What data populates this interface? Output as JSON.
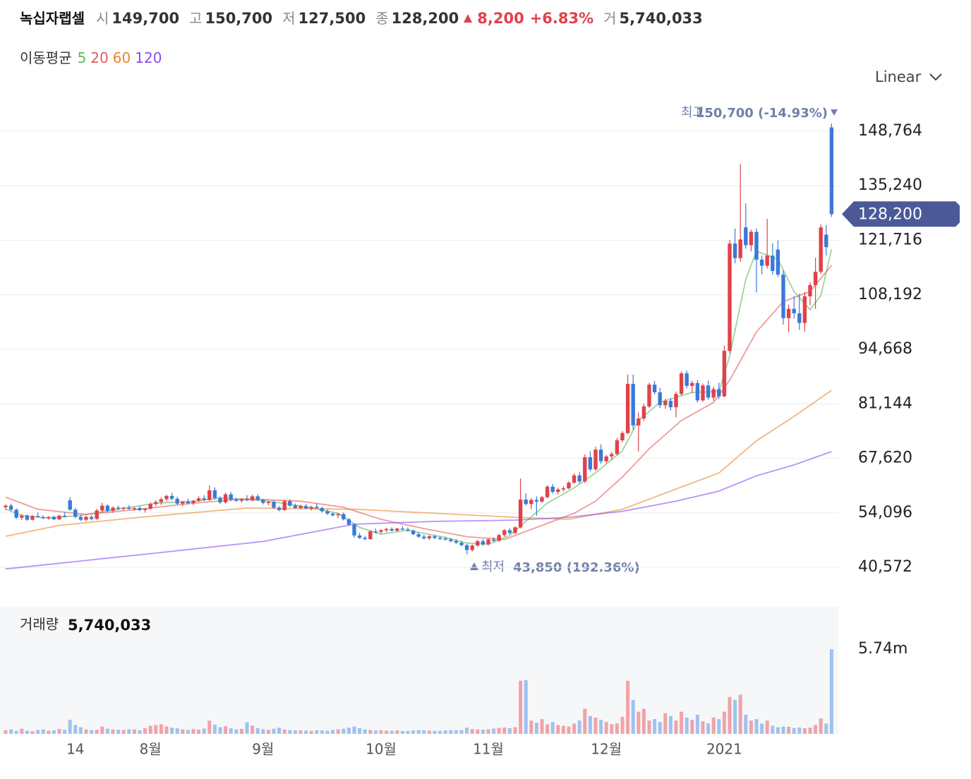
{
  "chart_data": {
    "type": "candlestick",
    "title": "녹십자랩셀",
    "header": {
      "open_label": "시",
      "open": "149,700",
      "high_label": "고",
      "high": "150,700",
      "low_label": "저",
      "low": "127,500",
      "close_label": "종",
      "close": "128,200",
      "change": "8,200",
      "change_pct": "+6.83%",
      "volume_label": "거",
      "volume": "5,740,033"
    },
    "ma_title": "이동평균",
    "scale_mode": "Linear",
    "high_annotation": {
      "label": "최고",
      "text": "150,700 (-14.93%)"
    },
    "low_annotation": {
      "label": "최저",
      "text": "43,850 (192.36%)"
    },
    "last_price": "128,200",
    "volume_title": "거래량",
    "volume_value": "5,740,033",
    "up_color": "#e0424a",
    "down_color": "#3a7ad8",
    "volume_up_color": "#f0a3a8",
    "volume_down_color": "#9fc2ef",
    "ylim": [
      34300,
      156800
    ],
    "yticks": [
      {
        "value": 40572,
        "label": "40,572"
      },
      {
        "value": 54096,
        "label": "54,096"
      },
      {
        "value": 67620,
        "label": "67,620"
      },
      {
        "value": 81144,
        "label": "81,144"
      },
      {
        "value": 94668,
        "label": "94,668"
      },
      {
        "value": 108192,
        "label": "108,192"
      },
      {
        "value": 121716,
        "label": "121,716"
      },
      {
        "value": 135240,
        "label": "135,240"
      },
      {
        "value": 148764,
        "label": "148,764"
      }
    ],
    "grid": true,
    "y2lim": [
      0,
      8610000
    ],
    "y2ticks": [
      {
        "value": 5740033,
        "label": "5.74m"
      }
    ],
    "xticks": [
      {
        "value": 13,
        "label": "14"
      },
      {
        "value": 27,
        "label": "8월"
      },
      {
        "value": 48,
        "label": "9월"
      },
      {
        "value": 70,
        "label": "10월"
      },
      {
        "value": 90,
        "label": "11월"
      },
      {
        "value": 112,
        "label": "12월"
      },
      {
        "value": 134,
        "label": "2021"
      }
    ],
    "ohlc": [
      [
        55500,
        56200,
        54800,
        55900
      ],
      [
        55900,
        56400,
        54600,
        54900
      ],
      [
        54900,
        55200,
        52600,
        52900
      ],
      [
        52900,
        53800,
        52300,
        53400
      ],
      [
        53400,
        53700,
        52100,
        52400
      ],
      [
        52400,
        53600,
        52200,
        53300
      ],
      [
        53300,
        54200,
        52900,
        53000
      ],
      [
        53000,
        53500,
        52600,
        52800
      ],
      [
        52800,
        53300,
        52400,
        53100
      ],
      [
        53100,
        53400,
        52300,
        52500
      ],
      [
        52500,
        53600,
        52300,
        53400
      ],
      [
        53400,
        54300,
        53000,
        53200
      ],
      [
        57200,
        58000,
        54600,
        54900
      ],
      [
        54900,
        55300,
        52800,
        53100
      ],
      [
        53100,
        53600,
        52100,
        52400
      ],
      [
        52400,
        53400,
        52000,
        53100
      ],
      [
        53100,
        53500,
        52200,
        52600
      ],
      [
        52600,
        55100,
        52400,
        54700
      ],
      [
        54700,
        56600,
        54200,
        55900
      ],
      [
        55900,
        56200,
        54300,
        54600
      ],
      [
        54600,
        55700,
        54100,
        55400
      ],
      [
        55400,
        55900,
        54800,
        55200
      ],
      [
        55200,
        55600,
        54700,
        55400
      ],
      [
        55400,
        56000,
        54900,
        55100
      ],
      [
        55100,
        55500,
        54600,
        55300
      ],
      [
        55300,
        55800,
        54500,
        54800
      ],
      [
        54800,
        55300,
        54200,
        55100
      ],
      [
        55100,
        56700,
        54900,
        56300
      ],
      [
        56300,
        57200,
        55800,
        56800
      ],
      [
        56800,
        57900,
        56100,
        57500
      ],
      [
        57500,
        58600,
        57000,
        58300
      ],
      [
        58300,
        59100,
        57200,
        57600
      ],
      [
        57600,
        58100,
        56100,
        56400
      ],
      [
        56400,
        57100,
        55800,
        56900
      ],
      [
        56900,
        57600,
        56200,
        56500
      ],
      [
        56500,
        57300,
        56000,
        57100
      ],
      [
        57100,
        58200,
        56800,
        57700
      ],
      [
        57700,
        58500,
        57000,
        57300
      ],
      [
        57300,
        60900,
        57100,
        59700
      ],
      [
        59700,
        60400,
        57400,
        57800
      ],
      [
        57800,
        58200,
        56300,
        56700
      ],
      [
        56700,
        59100,
        56400,
        58700
      ],
      [
        58700,
        59300,
        57000,
        57400
      ],
      [
        57400,
        57900,
        56800,
        57100
      ],
      [
        57100,
        57800,
        56600,
        57500
      ],
      [
        57500,
        58500,
        57000,
        57200
      ],
      [
        57200,
        58600,
        56900,
        58200
      ],
      [
        58200,
        58700,
        57000,
        57300
      ],
      [
        57300,
        57600,
        56200,
        56600
      ],
      [
        56600,
        57100,
        56000,
        56800
      ],
      [
        56800,
        57300,
        55100,
        55400
      ],
      [
        55400,
        55800,
        54500,
        54800
      ],
      [
        54800,
        57300,
        54600,
        57000
      ],
      [
        57000,
        57500,
        55600,
        55900
      ],
      [
        55900,
        56400,
        55100,
        55300
      ],
      [
        55300,
        56100,
        55000,
        55800
      ],
      [
        55800,
        56300,
        55000,
        55200
      ],
      [
        55200,
        55900,
        54700,
        55600
      ],
      [
        55600,
        56400,
        55100,
        55300
      ],
      [
        55300,
        55700,
        54200,
        54500
      ],
      [
        54500,
        55000,
        53600,
        53900
      ],
      [
        53900,
        54300,
        53200,
        53500
      ],
      [
        53500,
        54100,
        52800,
        53800
      ],
      [
        53800,
        54200,
        52200,
        52500
      ],
      [
        52500,
        52800,
        50900,
        51200
      ],
      [
        51200,
        51500,
        47900,
        48500
      ],
      [
        48500,
        49100,
        47600,
        47900
      ],
      [
        47900,
        48400,
        47300,
        47600
      ],
      [
        47600,
        49800,
        47400,
        49500
      ],
      [
        49500,
        50200,
        49000,
        49400
      ],
      [
        49400,
        50100,
        48900,
        49800
      ],
      [
        49800,
        50400,
        49300,
        50100
      ],
      [
        50100,
        50500,
        49500,
        49700
      ],
      [
        49700,
        50400,
        49400,
        50200
      ],
      [
        50200,
        50800,
        49800,
        50000
      ],
      [
        50000,
        50500,
        49400,
        49700
      ],
      [
        49700,
        50000,
        48600,
        48800
      ],
      [
        48800,
        49300,
        47900,
        48200
      ],
      [
        48200,
        48700,
        47500,
        47800
      ],
      [
        47800,
        48600,
        47400,
        48300
      ],
      [
        48300,
        48700,
        47600,
        47900
      ],
      [
        47900,
        48300,
        47400,
        47700
      ],
      [
        47700,
        48200,
        47300,
        47500
      ],
      [
        47500,
        47900,
        46800,
        47100
      ],
      [
        47100,
        47600,
        46400,
        46700
      ],
      [
        46700,
        47200,
        45800,
        46100
      ],
      [
        46100,
        46400,
        43850,
        44900
      ],
      [
        44900,
        46300,
        44500,
        46000
      ],
      [
        46000,
        47400,
        45700,
        47100
      ],
      [
        47100,
        47600,
        45900,
        46300
      ],
      [
        46300,
        47800,
        46000,
        47500
      ],
      [
        47500,
        48100,
        46800,
        47200
      ],
      [
        47200,
        48900,
        46900,
        48600
      ],
      [
        48600,
        50100,
        48200,
        49800
      ],
      [
        49800,
        50300,
        48800,
        49100
      ],
      [
        49100,
        50800,
        48900,
        50500
      ],
      [
        50500,
        62600,
        50200,
        57400
      ],
      [
        57400,
        59000,
        55900,
        56300
      ],
      [
        56300,
        57800,
        55000,
        57300
      ],
      [
        57300,
        58200,
        53400,
        56900
      ],
      [
        56900,
        58300,
        56600,
        58000
      ],
      [
        58000,
        61000,
        57700,
        60600
      ],
      [
        60600,
        61300,
        58900,
        59300
      ],
      [
        59300,
        60300,
        58700,
        59900
      ],
      [
        59900,
        60700,
        59400,
        60200
      ],
      [
        60200,
        62000,
        59900,
        61600
      ],
      [
        61600,
        63900,
        61300,
        63400
      ],
      [
        63400,
        64300,
        61400,
        61900
      ],
      [
        61900,
        68600,
        61500,
        67900
      ],
      [
        67900,
        69400,
        64400,
        64900
      ],
      [
        64900,
        70500,
        64500,
        69800
      ],
      [
        69800,
        71100,
        66300,
        66900
      ],
      [
        66900,
        68500,
        66400,
        68100
      ],
      [
        68100,
        69200,
        67300,
        68700
      ],
      [
        68700,
        72700,
        68400,
        72100
      ],
      [
        72100,
        74400,
        71600,
        73900
      ],
      [
        73900,
        88400,
        73600,
        86100
      ],
      [
        86100,
        88400,
        74700,
        75800
      ],
      [
        75800,
        79000,
        69300,
        77500
      ],
      [
        77500,
        81200,
        76900,
        80500
      ],
      [
        80500,
        86400,
        80100,
        85900
      ],
      [
        85900,
        86800,
        83500,
        84000
      ],
      [
        84000,
        85100,
        80100,
        80800
      ],
      [
        80800,
        82400,
        79900,
        81900
      ],
      [
        81900,
        82600,
        79500,
        80300
      ],
      [
        80300,
        84200,
        77800,
        83600
      ],
      [
        83600,
        89200,
        83100,
        88700
      ],
      [
        88700,
        89400,
        85000,
        85600
      ],
      [
        85600,
        86900,
        83800,
        86300
      ],
      [
        86300,
        87100,
        81500,
        82000
      ],
      [
        82000,
        86200,
        81600,
        85700
      ],
      [
        85700,
        86900,
        82100,
        82700
      ],
      [
        82700,
        85400,
        81900,
        84800
      ],
      [
        84800,
        86400,
        82300,
        83000
      ],
      [
        83000,
        95600,
        82800,
        94300
      ],
      [
        94300,
        121800,
        93700,
        120900
      ],
      [
        120900,
        124600,
        116000,
        117300
      ],
      [
        117300,
        140600,
        116400,
        121900
      ],
      [
        124900,
        130900,
        119600,
        120500
      ],
      [
        120500,
        124400,
        119000,
        123800
      ],
      [
        123800,
        124600,
        108700,
        116900
      ],
      [
        116900,
        117900,
        113300,
        115400
      ],
      [
        115400,
        127000,
        114700,
        117900
      ],
      [
        117900,
        121000,
        113200,
        114100
      ],
      [
        119400,
        121700,
        112600,
        113200
      ],
      [
        113200,
        114300,
        100800,
        102400
      ],
      [
        102400,
        105800,
        98900,
        104700
      ],
      [
        104700,
        107900,
        102300,
        103600
      ],
      [
        103600,
        108500,
        99500,
        101200
      ],
      [
        101200,
        108900,
        99000,
        107800
      ],
      [
        107800,
        111300,
        105600,
        110600
      ],
      [
        110600,
        117400,
        104700,
        113900
      ],
      [
        113900,
        125700,
        113300,
        124900
      ],
      [
        123100,
        125500,
        117900,
        120000
      ],
      [
        149700,
        150700,
        127500,
        128200
      ]
    ],
    "volume": [
      250000,
      300000,
      200000,
      350000,
      220000,
      180000,
      260000,
      300000,
      210000,
      240000,
      330000,
      280000,
      950000,
      600000,
      450000,
      300000,
      250000,
      280000,
      500000,
      350000,
      300000,
      280000,
      260000,
      320000,
      300000,
      240000,
      380000,
      550000,
      600000,
      650000,
      500000,
      420000,
      380000,
      300000,
      260000,
      330000,
      290000,
      360000,
      900000,
      620000,
      450000,
      520000,
      380000,
      300000,
      340000,
      780000,
      560000,
      400000,
      310000,
      280000,
      350000,
      420000,
      300000,
      260000,
      240000,
      230000,
      220000,
      200000,
      250000,
      230000,
      210000,
      270000,
      300000,
      350000,
      420000,
      500000,
      380000,
      300000,
      260000,
      230000,
      250000,
      220000,
      210000,
      240000,
      200000,
      190000,
      230000,
      260000,
      250000,
      220000,
      210000,
      200000,
      230000,
      250000,
      240000,
      260000,
      420000,
      330000,
      300000,
      280000,
      310000,
      360000,
      400000,
      430000,
      380000,
      450000,
      3600000,
      3650000,
      900000,
      750000,
      1000000,
      650000,
      800000,
      600000,
      550000,
      500000,
      700000,
      900000,
      1700000,
      1200000,
      1100000,
      950000,
      800000,
      650000,
      700000,
      1150000,
      3600000,
      2300000,
      1500000,
      1700000,
      900000,
      1000000,
      800000,
      1400000,
      1200000,
      900000,
      1500000,
      1100000,
      950000,
      1300000,
      850000,
      700000,
      1100000,
      1000000,
      1500000,
      2500000,
      2300000,
      2650000,
      1300000,
      900000,
      1000000,
      700000,
      900000,
      550000,
      450000,
      500000,
      480000,
      400000,
      430000,
      380000,
      420000,
      600000,
      1050000,
      700000,
      5740033
    ],
    "series": [
      {
        "name": "5",
        "color": "#5cb85c",
        "x": [
          0,
          3,
          8,
          14,
          20,
          28,
          35,
          40,
          48,
          55,
          62,
          66,
          70,
          75,
          82,
          86,
          90,
          94,
          97,
          101,
          106,
          110,
          115,
          118,
          122,
          128,
          133,
          135,
          138,
          140,
          144,
          147,
          150,
          152,
          154
        ],
        "values": [
          55000,
          53500,
          52800,
          53500,
          54800,
          56500,
          57000,
          57800,
          57200,
          55800,
          54000,
          50500,
          48800,
          49800,
          48000,
          46600,
          46300,
          48500,
          52000,
          56500,
          60300,
          64000,
          69500,
          77000,
          81500,
          84000,
          84200,
          93000,
          112000,
          119000,
          117000,
          109000,
          104500,
          108000,
          119500
        ]
      },
      {
        "name": "20",
        "color": "#e45858",
        "x": [
          0,
          6,
          15,
          25,
          35,
          45,
          55,
          63,
          70,
          78,
          86,
          93,
          100,
          106,
          110,
          115,
          120,
          126,
          132,
          135,
          140,
          145,
          150,
          154
        ],
        "values": [
          58000,
          55000,
          53700,
          55000,
          56500,
          57600,
          57000,
          55500,
          52500,
          50200,
          48200,
          47500,
          51000,
          54000,
          57000,
          63000,
          70000,
          77000,
          81500,
          87000,
          99000,
          106500,
          109000,
          115500
        ]
      },
      {
        "name": "60",
        "color": "#e8862a",
        "x": [
          0,
          10,
          25,
          45,
          65,
          80,
          95,
          105,
          115,
          125,
          133,
          140,
          147,
          154
        ],
        "values": [
          48300,
          51000,
          53000,
          55300,
          55000,
          54000,
          53000,
          52500,
          55000,
          60000,
          64000,
          72000,
          78000,
          84500
        ]
      },
      {
        "name": "120",
        "color": "#8a4bf0",
        "x": [
          0,
          27,
          48,
          65,
          80,
          95,
          105,
          115,
          125,
          133,
          140,
          147,
          154
        ],
        "values": [
          40200,
          44000,
          47000,
          51300,
          52000,
          52300,
          53000,
          54500,
          57000,
          59500,
          63300,
          66000,
          69300
        ]
      }
    ]
  }
}
